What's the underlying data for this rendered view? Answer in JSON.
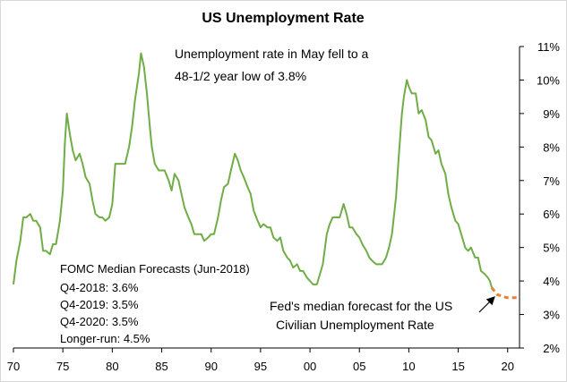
{
  "chart_data": {
    "type": "line",
    "title": "US Unemployment Rate",
    "xlabel": "",
    "ylabel": "",
    "x_tick_labels": [
      "70",
      "75",
      "80",
      "85",
      "90",
      "95",
      "00",
      "05",
      "10",
      "15",
      "20"
    ],
    "y_tick_labels": [
      "2%",
      "3%",
      "4%",
      "5%",
      "6%",
      "7%",
      "8%",
      "9%",
      "10%",
      "11%"
    ],
    "xlim": [
      1970,
      2021.2
    ],
    "ylim": [
      2,
      11
    ],
    "grid": false,
    "colors": {
      "actual": "#70ad47",
      "forecast": "#ed7d31"
    },
    "series": [
      {
        "role": "actual",
        "points": [
          [
            1970.0,
            3.9
          ],
          [
            1970.3,
            4.6
          ],
          [
            1970.7,
            5.2
          ],
          [
            1971.0,
            5.9
          ],
          [
            1971.3,
            5.9
          ],
          [
            1971.7,
            6.0
          ],
          [
            1972.0,
            5.8
          ],
          [
            1972.3,
            5.8
          ],
          [
            1972.7,
            5.6
          ],
          [
            1973.0,
            4.9
          ],
          [
            1973.3,
            4.9
          ],
          [
            1973.7,
            4.8
          ],
          [
            1974.0,
            5.1
          ],
          [
            1974.3,
            5.1
          ],
          [
            1974.7,
            5.8
          ],
          [
            1975.0,
            6.7
          ],
          [
            1975.2,
            8.1
          ],
          [
            1975.4,
            9.0
          ],
          [
            1975.7,
            8.4
          ],
          [
            1976.0,
            7.9
          ],
          [
            1976.3,
            7.6
          ],
          [
            1976.7,
            7.8
          ],
          [
            1977.0,
            7.5
          ],
          [
            1977.3,
            7.1
          ],
          [
            1977.7,
            6.9
          ],
          [
            1978.0,
            6.4
          ],
          [
            1978.3,
            6.0
          ],
          [
            1978.7,
            5.9
          ],
          [
            1979.0,
            5.9
          ],
          [
            1979.3,
            5.8
          ],
          [
            1979.7,
            5.9
          ],
          [
            1980.0,
            6.3
          ],
          [
            1980.3,
            7.5
          ],
          [
            1980.7,
            7.5
          ],
          [
            1981.0,
            7.5
          ],
          [
            1981.3,
            7.5
          ],
          [
            1981.7,
            8.0
          ],
          [
            1982.0,
            8.6
          ],
          [
            1982.3,
            9.4
          ],
          [
            1982.7,
            10.2
          ],
          [
            1982.9,
            10.8
          ],
          [
            1983.2,
            10.4
          ],
          [
            1983.5,
            9.6
          ],
          [
            1983.8,
            8.6
          ],
          [
            1984.0,
            8.0
          ],
          [
            1984.3,
            7.5
          ],
          [
            1984.7,
            7.3
          ],
          [
            1985.0,
            7.3
          ],
          [
            1985.3,
            7.3
          ],
          [
            1985.7,
            7.0
          ],
          [
            1986.0,
            6.7
          ],
          [
            1986.3,
            7.2
          ],
          [
            1986.7,
            7.0
          ],
          [
            1987.0,
            6.6
          ],
          [
            1987.3,
            6.2
          ],
          [
            1987.7,
            5.9
          ],
          [
            1988.0,
            5.7
          ],
          [
            1988.3,
            5.4
          ],
          [
            1988.7,
            5.4
          ],
          [
            1989.0,
            5.4
          ],
          [
            1989.3,
            5.2
          ],
          [
            1989.7,
            5.3
          ],
          [
            1990.0,
            5.4
          ],
          [
            1990.3,
            5.4
          ],
          [
            1990.7,
            5.9
          ],
          [
            1991.0,
            6.4
          ],
          [
            1991.3,
            6.8
          ],
          [
            1991.7,
            6.9
          ],
          [
            1992.0,
            7.3
          ],
          [
            1992.4,
            7.8
          ],
          [
            1992.7,
            7.6
          ],
          [
            1993.0,
            7.3
          ],
          [
            1993.3,
            7.1
          ],
          [
            1993.7,
            6.8
          ],
          [
            1994.0,
            6.6
          ],
          [
            1994.3,
            6.1
          ],
          [
            1994.7,
            5.8
          ],
          [
            1995.0,
            5.6
          ],
          [
            1995.3,
            5.7
          ],
          [
            1995.7,
            5.6
          ],
          [
            1996.0,
            5.6
          ],
          [
            1996.3,
            5.3
          ],
          [
            1996.7,
            5.2
          ],
          [
            1997.0,
            5.3
          ],
          [
            1997.3,
            4.9
          ],
          [
            1997.7,
            4.7
          ],
          [
            1998.0,
            4.6
          ],
          [
            1998.3,
            4.4
          ],
          [
            1998.7,
            4.5
          ],
          [
            1999.0,
            4.3
          ],
          [
            1999.3,
            4.3
          ],
          [
            1999.7,
            4.1
          ],
          [
            2000.0,
            4.0
          ],
          [
            2000.3,
            3.9
          ],
          [
            2000.7,
            3.9
          ],
          [
            2001.0,
            4.2
          ],
          [
            2001.3,
            4.5
          ],
          [
            2001.7,
            5.4
          ],
          [
            2002.0,
            5.7
          ],
          [
            2002.3,
            5.9
          ],
          [
            2002.7,
            5.9
          ],
          [
            2003.0,
            5.9
          ],
          [
            2003.4,
            6.3
          ],
          [
            2003.7,
            6.0
          ],
          [
            2004.0,
            5.6
          ],
          [
            2004.3,
            5.6
          ],
          [
            2004.7,
            5.4
          ],
          [
            2005.0,
            5.3
          ],
          [
            2005.3,
            5.1
          ],
          [
            2005.7,
            4.9
          ],
          [
            2006.0,
            4.7
          ],
          [
            2006.3,
            4.6
          ],
          [
            2006.7,
            4.5
          ],
          [
            2007.0,
            4.5
          ],
          [
            2007.3,
            4.5
          ],
          [
            2007.7,
            4.7
          ],
          [
            2008.0,
            5.0
          ],
          [
            2008.3,
            5.4
          ],
          [
            2008.7,
            6.5
          ],
          [
            2009.0,
            7.8
          ],
          [
            2009.3,
            9.0
          ],
          [
            2009.5,
            9.5
          ],
          [
            2009.8,
            10.0
          ],
          [
            2010.0,
            9.8
          ],
          [
            2010.3,
            9.6
          ],
          [
            2010.7,
            9.6
          ],
          [
            2011.0,
            9.0
          ],
          [
            2011.3,
            9.1
          ],
          [
            2011.7,
            8.8
          ],
          [
            2012.0,
            8.3
          ],
          [
            2012.3,
            8.2
          ],
          [
            2012.7,
            7.8
          ],
          [
            2013.0,
            7.9
          ],
          [
            2013.3,
            7.5
          ],
          [
            2013.7,
            7.2
          ],
          [
            2014.0,
            6.6
          ],
          [
            2014.3,
            6.2
          ],
          [
            2014.7,
            5.8
          ],
          [
            2015.0,
            5.7
          ],
          [
            2015.3,
            5.4
          ],
          [
            2015.7,
            5.0
          ],
          [
            2016.0,
            4.9
          ],
          [
            2016.3,
            5.0
          ],
          [
            2016.7,
            4.7
          ],
          [
            2017.0,
            4.7
          ],
          [
            2017.3,
            4.3
          ],
          [
            2017.7,
            4.2
          ],
          [
            2018.0,
            4.1
          ],
          [
            2018.2,
            4.0
          ],
          [
            2018.4,
            3.8
          ]
        ]
      },
      {
        "role": "forecast",
        "points": [
          [
            2018.4,
            3.8
          ],
          [
            2018.9,
            3.6
          ],
          [
            2019.9,
            3.5
          ],
          [
            2020.9,
            3.5
          ]
        ]
      }
    ],
    "annotations": {
      "headline_line1": "Unemployment rate in May fell to a",
      "headline_line2": "48-1/2 year low of 3.8%",
      "forecast_note_line1": "Fed's median forecast for the US",
      "forecast_note_line2": "Civilian Unemployment Rate"
    },
    "fomc_box": {
      "heading": "FOMC Median Forecasts (Jun-2018)",
      "rows": [
        "Q4-2018:  3.6%",
        "Q4-2019:  3.5%",
        "Q4-2020:  3.5%",
        "Longer-run:  4.5%"
      ]
    }
  }
}
